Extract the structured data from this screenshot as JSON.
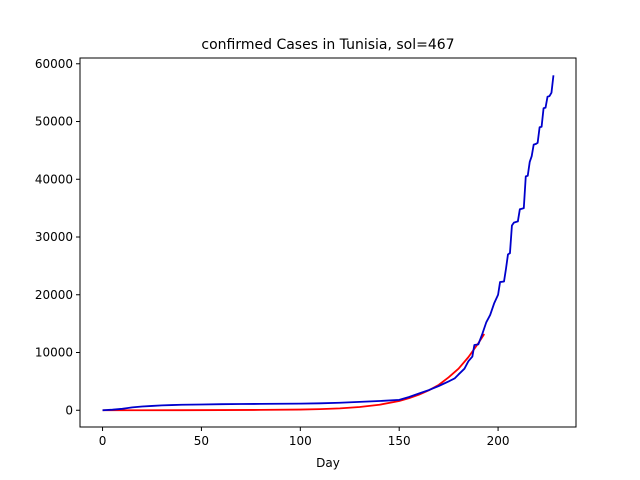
{
  "chart_data": {
    "type": "line",
    "title": "confirmed Cases in Tunisia, sol=467",
    "xlabel": "Day",
    "ylabel": "",
    "xlim": [
      -11.4,
      239.4
    ],
    "ylim": [
      -2900,
      61000
    ],
    "xticks": [
      0,
      50,
      100,
      150,
      200
    ],
    "yticks": [
      0,
      10000,
      20000,
      30000,
      40000,
      50000,
      60000
    ],
    "grid": false,
    "series": [
      {
        "color": "#ff0000",
        "x": [
          0,
          20,
          40,
          60,
          80,
          100,
          110,
          120,
          130,
          140,
          150,
          155,
          160,
          165,
          170,
          175,
          180,
          185,
          190,
          193
        ],
        "y": [
          0,
          5,
          15,
          30,
          60,
          120,
          200,
          330,
          560,
          950,
          1600,
          2100,
          2700,
          3450,
          4400,
          5700,
          7200,
          9200,
          11600,
          13200
        ]
      },
      {
        "color": "#0000cc",
        "x": [
          0,
          5,
          10,
          15,
          20,
          25,
          30,
          35,
          40,
          50,
          60,
          70,
          80,
          90,
          100,
          110,
          120,
          130,
          140,
          150,
          155,
          160,
          165,
          170,
          175,
          178,
          180,
          183,
          185,
          187,
          188,
          190,
          192,
          194,
          196,
          198,
          200,
          201,
          203,
          204,
          205,
          206,
          207,
          208,
          209,
          210,
          211,
          212,
          213,
          214,
          215,
          216,
          217,
          218,
          219,
          220,
          221,
          222,
          223,
          224,
          225,
          226,
          227,
          228
        ],
        "y": [
          0,
          100,
          250,
          500,
          650,
          750,
          850,
          900,
          950,
          1000,
          1050,
          1080,
          1100,
          1130,
          1150,
          1200,
          1300,
          1450,
          1600,
          1800,
          2300,
          2900,
          3500,
          4200,
          5000,
          5500,
          6200,
          7200,
          8500,
          9300,
          11300,
          11400,
          13200,
          15200,
          16500,
          18500,
          20000,
          22200,
          22300,
          24500,
          27000,
          27200,
          32000,
          32500,
          32600,
          32700,
          34800,
          34900,
          35000,
          40500,
          40600,
          43000,
          44000,
          46000,
          46100,
          46300,
          49000,
          49100,
          52300,
          52400,
          54300,
          54400,
          55000,
          58000
        ]
      }
    ]
  }
}
